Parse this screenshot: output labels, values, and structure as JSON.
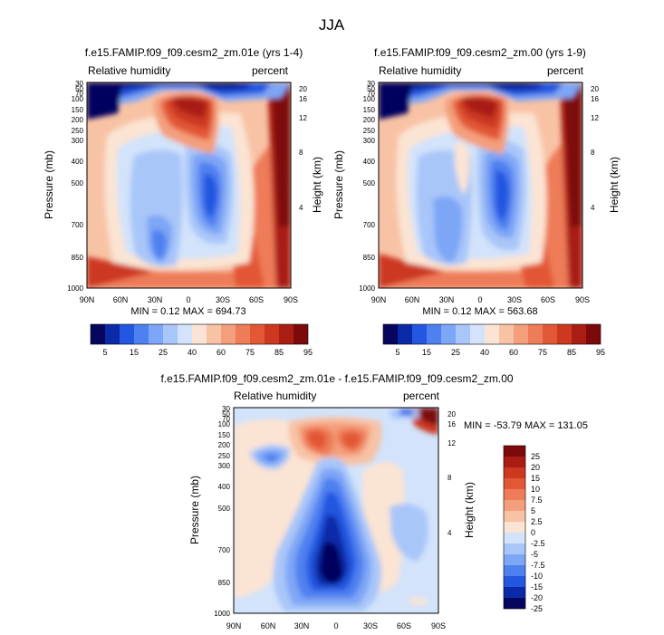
{
  "figure_title": "JJA",
  "chart_data": [
    {
      "type": "heatmap",
      "panel": "top-left",
      "title": "f.e15.FAMIP.f09_f09.cesm2_zm.01e (yrs 1-4)",
      "left_label": "Relative humidity",
      "right_label": "percent",
      "xlabel": "",
      "ylabel": "Pressure (mb)",
      "y2label": "Height (km)",
      "x_ticks": [
        "90N",
        "60N",
        "30N",
        "0",
        "30S",
        "60S",
        "90S"
      ],
      "y_ticks": [
        30,
        50,
        70,
        100,
        150,
        200,
        250,
        300,
        400,
        500,
        700,
        850,
        1000
      ],
      "y2_ticks": [
        20,
        16,
        12,
        8,
        4
      ],
      "x_range": [
        90,
        -90
      ],
      "y_range": [
        1000,
        30
      ],
      "stats": "MIN =   0.12  MAX = 694.73",
      "colorbar_labels": [
        "5",
        "15",
        "25",
        "40",
        "60",
        "75",
        "85",
        "95"
      ],
      "colorbar_orientation": "horizontal"
    },
    {
      "type": "heatmap",
      "panel": "top-right",
      "title": "f.e15.FAMIP.f09_f09.cesm2_zm.00 (yrs 1-9)",
      "left_label": "Relative humidity",
      "right_label": "percent",
      "xlabel": "",
      "ylabel": "Pressure (mb)",
      "y2label": "Height (km)",
      "x_ticks": [
        "90N",
        "60N",
        "30N",
        "0",
        "30S",
        "60S",
        "90S"
      ],
      "y_ticks": [
        30,
        50,
        70,
        100,
        150,
        200,
        250,
        300,
        400,
        500,
        700,
        850,
        1000
      ],
      "y2_ticks": [
        20,
        16,
        12,
        8,
        4
      ],
      "x_range": [
        90,
        -90
      ],
      "y_range": [
        1000,
        30
      ],
      "stats": "MIN =   0.12  MAX = 563.68",
      "colorbar_labels": [
        "5",
        "15",
        "25",
        "40",
        "60",
        "75",
        "85",
        "95"
      ],
      "colorbar_orientation": "horizontal"
    },
    {
      "type": "heatmap",
      "panel": "bottom",
      "title": "f.e15.FAMIP.f09_f09.cesm2_zm.01e - f.e15.FAMIP.f09_f09.cesm2_zm.00",
      "left_label": "Relative humidity",
      "right_label": "percent",
      "xlabel": "",
      "ylabel": "Pressure (mb)",
      "y2label": "Height (km)",
      "x_ticks": [
        "90N",
        "60N",
        "30N",
        "0",
        "30S",
        "60S",
        "90S"
      ],
      "y_ticks": [
        30,
        50,
        70,
        100,
        150,
        200,
        250,
        300,
        400,
        500,
        700,
        850,
        1000
      ],
      "y2_ticks": [
        20,
        16,
        12,
        8,
        4
      ],
      "x_range": [
        90,
        -90
      ],
      "y_range": [
        1000,
        30
      ],
      "stats": "MIN = -53.79  MAX = 131.05",
      "colorbar_labels": [
        "25",
        "20",
        "15",
        "10",
        "7.5",
        "5",
        "2.5",
        "0",
        "-2.5",
        "-5",
        "-7.5",
        "-10",
        "-15",
        "-20",
        "-25"
      ],
      "colorbar_orientation": "vertical"
    }
  ],
  "colors": {
    "abs_scale": [
      "#06065e",
      "#0a2aa8",
      "#2457e0",
      "#4f80f0",
      "#7ea6f6",
      "#a9c6f9",
      "#d2e3fb",
      "#fbe4d3",
      "#f8c2a5",
      "#f49f7c",
      "#ee7c58",
      "#e25735",
      "#cc3820",
      "#a91d12",
      "#7d0a0a"
    ],
    "diff_scale": [
      "#7d0a0a",
      "#a91d12",
      "#cc3820",
      "#e25735",
      "#ee7c58",
      "#f49f7c",
      "#f8c2a5",
      "#fbe4d3",
      "#d2e3fb",
      "#a9c6f9",
      "#7ea6f6",
      "#4f80f0",
      "#2457e0",
      "#0a2aa8",
      "#06065e"
    ]
  }
}
